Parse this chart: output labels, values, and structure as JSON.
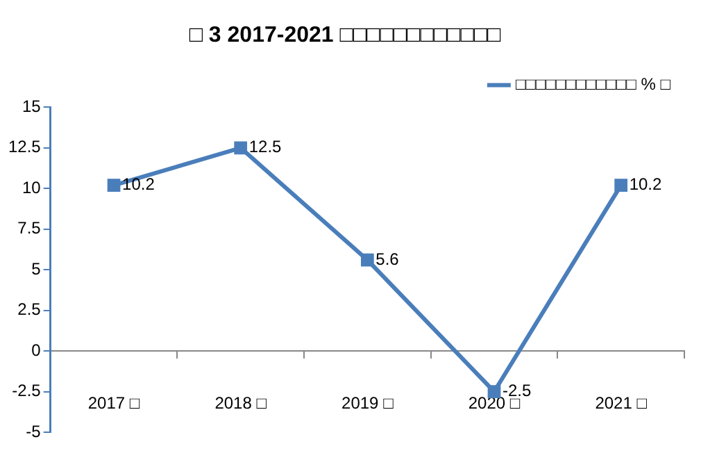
{
  "chart_data": {
    "type": "line",
    "title": "□ 3 2017-2021 □□□□□□□□□□□□",
    "categories": [
      "2017 □",
      "2018 □",
      "2019 □",
      "2020 □",
      "2021 □"
    ],
    "series": [
      {
        "name": "□□□□□□□□□□□□ % □",
        "color": "#4a7ebb",
        "values": [
          10.2,
          12.5,
          5.6,
          -2.5,
          10.2
        ]
      }
    ],
    "ylim": [
      -5,
      15
    ],
    "yticks": [
      -5,
      -2.5,
      0,
      2.5,
      5,
      7.5,
      10,
      12.5,
      15
    ],
    "grid": false,
    "legend": "top right",
    "marker": "square",
    "line_style": "solid",
    "data_labels": true
  }
}
